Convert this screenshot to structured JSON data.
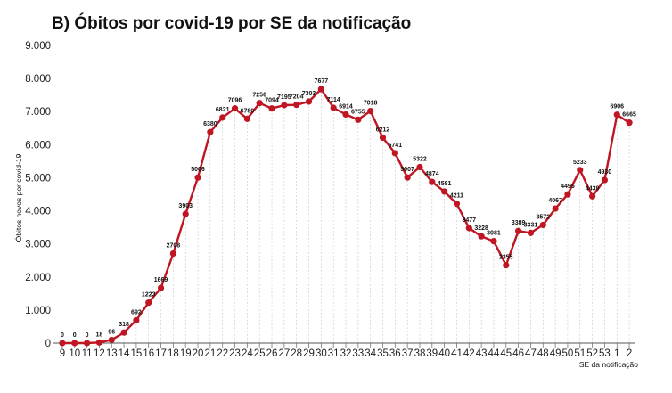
{
  "chart_data": {
    "type": "line",
    "title": "B) Óbitos por covid-19 por SE da notificação",
    "xlabel": "SE da notificação",
    "ylabel": "Óbitos novos por covid-19",
    "ylim": [
      0,
      9000
    ],
    "yticks": [
      0,
      1000,
      2000,
      3000,
      4000,
      5000,
      6000,
      7000,
      8000,
      9000
    ],
    "ytick_labels": [
      "0",
      "1.000",
      "2.000",
      "3.000",
      "4.000",
      "5.000",
      "6.000",
      "7.000",
      "8.000",
      "9.000"
    ],
    "categories": [
      "9",
      "10",
      "11",
      "12",
      "13",
      "14",
      "15",
      "16",
      "17",
      "18",
      "19",
      "20",
      "21",
      "22",
      "23",
      "24",
      "25",
      "26",
      "27",
      "28",
      "29",
      "30",
      "31",
      "32",
      "33",
      "34",
      "35",
      "36",
      "37",
      "38",
      "39",
      "40",
      "41",
      "42",
      "43",
      "44",
      "45",
      "46",
      "47",
      "48",
      "49",
      "50",
      "51",
      "52",
      "53",
      "1",
      "2"
    ],
    "values": [
      0,
      0,
      0,
      18,
      96,
      318,
      692,
      1223,
      1669,
      2708,
      3903,
      5006,
      6380,
      6821,
      7096,
      6780,
      7256,
      7094,
      7195,
      7204,
      7303,
      7677,
      7114,
      6914,
      6755,
      7018,
      6212,
      5741,
      5007,
      5322,
      4874,
      4581,
      4211,
      3477,
      3228,
      3081,
      2355,
      3389,
      3331,
      3572,
      4067,
      4495,
      5233,
      4439,
      4930,
      6906,
      6665
    ],
    "data_labels": [
      "0",
      "0",
      "0",
      "18",
      "96",
      "318",
      "692",
      "1223",
      "1669",
      "2708",
      "3903",
      "5006",
      "6380",
      "6821",
      "7096",
      "6780",
      "7256",
      "7094",
      "7195",
      "7204",
      "7303",
      "7677",
      "7114",
      "6914",
      "6755",
      "7018",
      "6212",
      "5741",
      "5007",
      "5322",
      "4874",
      "4581",
      "4211",
      "3477",
      "3228",
      "3081",
      "2355",
      "3389",
      "3331",
      "3572",
      "4067",
      "4495",
      "5233",
      "4439",
      "4930",
      "6906",
      "6665"
    ],
    "line_color": "#c01522",
    "grid": "vertical dashed",
    "legend": "none"
  }
}
